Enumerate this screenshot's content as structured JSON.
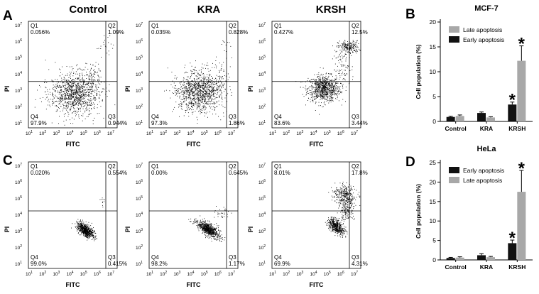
{
  "figure": {
    "panel_letters": [
      "A",
      "B",
      "C",
      "D"
    ],
    "column_titles": [
      "Control",
      "KRA",
      "KRSH"
    ]
  },
  "flow": {
    "x_label": "FITC",
    "y_label": "PI",
    "x_ticks": [
      "10",
      "10",
      "10",
      "10",
      "10",
      "10",
      "10"
    ],
    "x_tick_exps": [
      "1",
      "2",
      "3",
      "4",
      "5",
      "6",
      "7"
    ],
    "y_ticks": [
      "10",
      "10",
      "10",
      "10",
      "10",
      "10",
      "10"
    ],
    "y_tick_exps": [
      "7",
      "6",
      "5",
      "4",
      "3",
      "2",
      "1"
    ],
    "plots": [
      {
        "row": "A",
        "col": 0,
        "q1_label": "Q1",
        "q1": "0.056%",
        "q2_label": "Q2",
        "q2": "1.09%",
        "q3_label": "Q3",
        "q3": "0.944%",
        "q4_label": "Q4",
        "q4": "97.9%"
      },
      {
        "row": "A",
        "col": 1,
        "q1_label": "Q1",
        "q1": "0.035%",
        "q2_label": "Q2",
        "q2": "0.828%",
        "q3_label": "Q3",
        "q3": "1.86%",
        "q4_label": "Q4",
        "q4": "97.3%"
      },
      {
        "row": "A",
        "col": 2,
        "q1_label": "Q1",
        "q1": "0.427%",
        "q2_label": "Q2",
        "q2": "12.5%",
        "q3_label": "Q3",
        "q3": "3.44%",
        "q4_label": "Q4",
        "q4": "83.6%"
      },
      {
        "row": "C",
        "col": 0,
        "q1_label": "Q1",
        "q1": "0.020%",
        "q2_label": "Q2",
        "q2": "0.554%",
        "q3_label": "Q3",
        "q3": "0.415%",
        "q4_label": "Q4",
        "q4": "99.0%"
      },
      {
        "row": "C",
        "col": 1,
        "q1_label": "Q1",
        "q1": "0.00%",
        "q2_label": "Q2",
        "q2": "0.645%",
        "q3_label": "Q3",
        "q3": "1.17%",
        "q4_label": "Q4",
        "q4": "98.2%"
      },
      {
        "row": "C",
        "col": 2,
        "q1_label": "Q1",
        "q1": "8.01%",
        "q2_label": "Q2",
        "q2": "17.8%",
        "q3_label": "Q3",
        "q3": "4.31%",
        "q4_label": "Q4",
        "q4": "69.9%"
      }
    ]
  },
  "colors": {
    "early": "#111111",
    "late": "#a8a8a8",
    "scatter": "#000000"
  },
  "chart_data": [
    {
      "type": "bar",
      "panel": "B",
      "title": "MCF-7",
      "xlabel": "",
      "ylabel": "Cell population (%)",
      "ylim": [
        0,
        20
      ],
      "yticks": [
        "0",
        "5",
        "10",
        "15",
        "20"
      ],
      "categories": [
        "Control",
        "KRA",
        "KRSH"
      ],
      "legend_position": "top-left",
      "series": [
        {
          "name": "Late apoptosis",
          "color": "#a8a8a8",
          "values": [
            1.1,
            0.8,
            12.2
          ],
          "errors": [
            0.2,
            0.15,
            3.0
          ]
        },
        {
          "name": "Early apoptosis",
          "color": "#111111",
          "values": [
            0.9,
            1.7,
            3.4
          ],
          "errors": [
            0.15,
            0.2,
            0.5
          ]
        }
      ],
      "annotations": [
        {
          "text": "*",
          "category": "KRSH",
          "series": "Early apoptosis"
        },
        {
          "text": "*",
          "category": "KRSH",
          "series": "Late apoptosis"
        }
      ]
    },
    {
      "type": "bar",
      "panel": "D",
      "title": "HeLa",
      "xlabel": "",
      "ylabel": "Cell population (%)",
      "ylim": [
        0,
        25
      ],
      "yticks": [
        "0",
        "5",
        "10",
        "15",
        "20",
        "25"
      ],
      "categories": [
        "Control",
        "KRA",
        "KRSH"
      ],
      "legend_position": "top-left",
      "series": [
        {
          "name": "Early apoptosis",
          "color": "#111111",
          "values": [
            0.5,
            1.2,
            4.3
          ],
          "errors": [
            0.15,
            0.4,
            0.8
          ]
        },
        {
          "name": "Late apoptosis",
          "color": "#a8a8a8",
          "values": [
            0.6,
            0.7,
            17.5
          ],
          "errors": [
            0.2,
            0.2,
            5.5
          ]
        }
      ],
      "annotations": [
        {
          "text": "*",
          "category": "KRSH",
          "series": "Early apoptosis"
        },
        {
          "text": "*",
          "category": "KRSH",
          "series": "Late apoptosis"
        }
      ]
    }
  ]
}
